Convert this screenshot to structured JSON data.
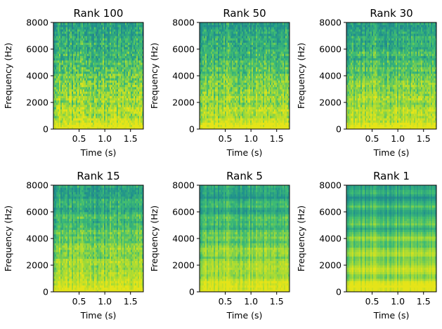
{
  "chart_data": [
    {
      "type": "heatmap",
      "title": "Rank 100",
      "xlabel": "Time (s)",
      "ylabel": "Frequency (Hz)",
      "xlim": [
        0,
        1.75
      ],
      "ylim": [
        0,
        8000
      ],
      "xticks": [
        "0.5",
        "1.0",
        "1.5"
      ],
      "yticks": [
        "0",
        "2000",
        "4000",
        "6000",
        "8000"
      ],
      "rank": 100,
      "colormap": "viridis"
    },
    {
      "type": "heatmap",
      "title": "Rank 50",
      "xlabel": "Time (s)",
      "ylabel": "Frequency (Hz)",
      "xlim": [
        0,
        1.75
      ],
      "ylim": [
        0,
        8000
      ],
      "xticks": [
        "0.5",
        "1.0",
        "1.5"
      ],
      "yticks": [
        "0",
        "2000",
        "4000",
        "6000",
        "8000"
      ],
      "rank": 50,
      "colormap": "viridis"
    },
    {
      "type": "heatmap",
      "title": "Rank 30",
      "xlabel": "Time (s)",
      "ylabel": "Frequency (Hz)",
      "xlim": [
        0,
        1.75
      ],
      "ylim": [
        0,
        8000
      ],
      "xticks": [
        "0.5",
        "1.0",
        "1.5"
      ],
      "yticks": [
        "0",
        "2000",
        "4000",
        "6000",
        "8000"
      ],
      "rank": 30,
      "colormap": "viridis"
    },
    {
      "type": "heatmap",
      "title": "Rank 15",
      "xlabel": "Time (s)",
      "ylabel": "Frequency (Hz)",
      "xlim": [
        0,
        1.75
      ],
      "ylim": [
        0,
        8000
      ],
      "xticks": [
        "0.5",
        "1.0",
        "1.5"
      ],
      "yticks": [
        "0",
        "2000",
        "4000",
        "6000",
        "8000"
      ],
      "rank": 15,
      "colormap": "viridis"
    },
    {
      "type": "heatmap",
      "title": "Rank 5",
      "xlabel": "Time (s)",
      "ylabel": "Frequency (Hz)",
      "xlim": [
        0,
        1.75
      ],
      "ylim": [
        0,
        8000
      ],
      "xticks": [
        "0.5",
        "1.0",
        "1.5"
      ],
      "yticks": [
        "0",
        "2000",
        "4000",
        "6000",
        "8000"
      ],
      "rank": 5,
      "colormap": "viridis"
    },
    {
      "type": "heatmap",
      "title": "Rank 1",
      "xlabel": "Time (s)",
      "ylabel": "Frequency (Hz)",
      "xlim": [
        0,
        1.75
      ],
      "ylim": [
        0,
        8000
      ],
      "xticks": [
        "0.5",
        "1.0",
        "1.5"
      ],
      "yticks": [
        "0",
        "2000",
        "4000",
        "6000",
        "8000"
      ],
      "rank": 1,
      "colormap": "viridis"
    }
  ],
  "colors": {
    "high": "#e5e419",
    "mid_high": "#a2da37",
    "mid": "#3fbc73",
    "low": "#20928c",
    "lowest": "#2a788e",
    "frame": "#000000"
  }
}
